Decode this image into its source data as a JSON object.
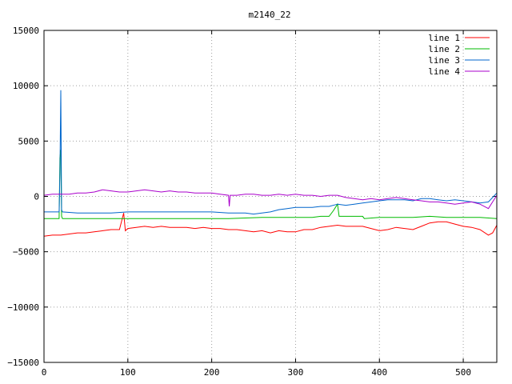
{
  "chart_data": {
    "type": "line",
    "title": "m2140_22",
    "xlabel": "",
    "ylabel": "",
    "xlim": [
      0,
      540
    ],
    "ylim": [
      -15000,
      15000
    ],
    "x_ticks": [
      0,
      100,
      200,
      300,
      400,
      500
    ],
    "y_ticks": [
      -15000,
      -10000,
      -5000,
      0,
      5000,
      10000,
      15000
    ],
    "x_tick_labels": [
      "0",
      "100",
      "200",
      "300",
      "400",
      "500"
    ],
    "y_tick_labels": [
      "−15000",
      "−10000",
      "−5000",
      "0",
      "5000",
      "10000",
      "15000"
    ],
    "grid": true,
    "legend_position": "top-right",
    "series": [
      {
        "name": "line 1",
        "color": "#ff0000",
        "points": [
          [
            0,
            -3600
          ],
          [
            10,
            -3500
          ],
          [
            20,
            -3500
          ],
          [
            30,
            -3400
          ],
          [
            40,
            -3300
          ],
          [
            50,
            -3300
          ],
          [
            60,
            -3200
          ],
          [
            70,
            -3100
          ],
          [
            80,
            -3000
          ],
          [
            90,
            -3000
          ],
          [
            95,
            -1500
          ],
          [
            97,
            -3100
          ],
          [
            100,
            -2900
          ],
          [
            110,
            -2800
          ],
          [
            120,
            -2700
          ],
          [
            130,
            -2800
          ],
          [
            140,
            -2700
          ],
          [
            150,
            -2800
          ],
          [
            160,
            -2800
          ],
          [
            170,
            -2800
          ],
          [
            180,
            -2900
          ],
          [
            190,
            -2800
          ],
          [
            200,
            -2900
          ],
          [
            210,
            -2900
          ],
          [
            220,
            -3000
          ],
          [
            230,
            -3000
          ],
          [
            240,
            -3100
          ],
          [
            250,
            -3200
          ],
          [
            260,
            -3100
          ],
          [
            270,
            -3300
          ],
          [
            280,
            -3100
          ],
          [
            290,
            -3200
          ],
          [
            300,
            -3200
          ],
          [
            310,
            -3000
          ],
          [
            320,
            -3000
          ],
          [
            330,
            -2800
          ],
          [
            340,
            -2700
          ],
          [
            350,
            -2600
          ],
          [
            360,
            -2700
          ],
          [
            370,
            -2700
          ],
          [
            380,
            -2700
          ],
          [
            390,
            -2900
          ],
          [
            400,
            -3100
          ],
          [
            410,
            -3000
          ],
          [
            420,
            -2800
          ],
          [
            430,
            -2900
          ],
          [
            440,
            -3000
          ],
          [
            450,
            -2700
          ],
          [
            460,
            -2400
          ],
          [
            470,
            -2300
          ],
          [
            480,
            -2300
          ],
          [
            490,
            -2500
          ],
          [
            500,
            -2700
          ],
          [
            510,
            -2800
          ],
          [
            520,
            -3000
          ],
          [
            530,
            -3500
          ],
          [
            535,
            -3300
          ],
          [
            540,
            -2600
          ]
        ]
      },
      {
        "name": "line 2",
        "color": "#00bb00",
        "points": [
          [
            0,
            -2000
          ],
          [
            10,
            -2000
          ],
          [
            18,
            -2000
          ],
          [
            19,
            3500
          ],
          [
            20,
            4200
          ],
          [
            21,
            -1800
          ],
          [
            22,
            -2000
          ],
          [
            30,
            -2000
          ],
          [
            60,
            -2000
          ],
          [
            100,
            -2000
          ],
          [
            140,
            -2000
          ],
          [
            180,
            -2000
          ],
          [
            220,
            -2000
          ],
          [
            260,
            -1900
          ],
          [
            300,
            -1900
          ],
          [
            320,
            -1900
          ],
          [
            330,
            -1800
          ],
          [
            340,
            -1800
          ],
          [
            345,
            -1300
          ],
          [
            350,
            -700
          ],
          [
            352,
            -1800
          ],
          [
            360,
            -1800
          ],
          [
            380,
            -1800
          ],
          [
            382,
            -2000
          ],
          [
            400,
            -1900
          ],
          [
            420,
            -1900
          ],
          [
            440,
            -1900
          ],
          [
            460,
            -1800
          ],
          [
            480,
            -1900
          ],
          [
            500,
            -1900
          ],
          [
            520,
            -1900
          ],
          [
            540,
            -2000
          ]
        ]
      },
      {
        "name": "line 3",
        "color": "#0066cc",
        "points": [
          [
            0,
            -1400
          ],
          [
            10,
            -1400
          ],
          [
            18,
            -1400
          ],
          [
            19,
            2000
          ],
          [
            20,
            9600
          ],
          [
            21,
            -1200
          ],
          [
            22,
            -1400
          ],
          [
            40,
            -1500
          ],
          [
            60,
            -1500
          ],
          [
            80,
            -1500
          ],
          [
            100,
            -1400
          ],
          [
            120,
            -1400
          ],
          [
            140,
            -1400
          ],
          [
            160,
            -1400
          ],
          [
            180,
            -1400
          ],
          [
            200,
            -1400
          ],
          [
            220,
            -1500
          ],
          [
            240,
            -1500
          ],
          [
            250,
            -1600
          ],
          [
            260,
            -1500
          ],
          [
            270,
            -1400
          ],
          [
            280,
            -1200
          ],
          [
            290,
            -1100
          ],
          [
            300,
            -1000
          ],
          [
            310,
            -1000
          ],
          [
            320,
            -1000
          ],
          [
            330,
            -900
          ],
          [
            340,
            -900
          ],
          [
            350,
            -700
          ],
          [
            360,
            -800
          ],
          [
            370,
            -700
          ],
          [
            380,
            -600
          ],
          [
            390,
            -500
          ],
          [
            400,
            -400
          ],
          [
            410,
            -300
          ],
          [
            420,
            -300
          ],
          [
            430,
            -300
          ],
          [
            440,
            -400
          ],
          [
            450,
            -200
          ],
          [
            460,
            -200
          ],
          [
            470,
            -300
          ],
          [
            480,
            -400
          ],
          [
            490,
            -300
          ],
          [
            500,
            -400
          ],
          [
            510,
            -500
          ],
          [
            520,
            -600
          ],
          [
            530,
            -500
          ],
          [
            540,
            300
          ]
        ]
      },
      {
        "name": "line 4",
        "color": "#aa00cc",
        "points": [
          [
            0,
            100
          ],
          [
            10,
            200
          ],
          [
            20,
            200
          ],
          [
            30,
            200
          ],
          [
            40,
            300
          ],
          [
            50,
            300
          ],
          [
            60,
            400
          ],
          [
            70,
            600
          ],
          [
            80,
            500
          ],
          [
            90,
            400
          ],
          [
            100,
            400
          ],
          [
            110,
            500
          ],
          [
            120,
            600
          ],
          [
            130,
            500
          ],
          [
            140,
            400
          ],
          [
            150,
            500
          ],
          [
            160,
            400
          ],
          [
            170,
            400
          ],
          [
            180,
            300
          ],
          [
            190,
            300
          ],
          [
            200,
            300
          ],
          [
            210,
            200
          ],
          [
            220,
            100
          ],
          [
            221,
            -900
          ],
          [
            222,
            100
          ],
          [
            230,
            100
          ],
          [
            240,
            200
          ],
          [
            250,
            200
          ],
          [
            260,
            100
          ],
          [
            270,
            100
          ],
          [
            280,
            200
          ],
          [
            290,
            100
          ],
          [
            300,
            200
          ],
          [
            310,
            100
          ],
          [
            320,
            100
          ],
          [
            330,
            0
          ],
          [
            340,
            100
          ],
          [
            350,
            100
          ],
          [
            360,
            -100
          ],
          [
            370,
            -200
          ],
          [
            380,
            -300
          ],
          [
            390,
            -200
          ],
          [
            400,
            -300
          ],
          [
            410,
            -200
          ],
          [
            420,
            -100
          ],
          [
            430,
            -200
          ],
          [
            440,
            -300
          ],
          [
            450,
            -400
          ],
          [
            460,
            -500
          ],
          [
            470,
            -500
          ],
          [
            480,
            -600
          ],
          [
            490,
            -700
          ],
          [
            500,
            -600
          ],
          [
            510,
            -500
          ],
          [
            520,
            -700
          ],
          [
            530,
            -1100
          ],
          [
            540,
            100
          ]
        ]
      }
    ]
  }
}
